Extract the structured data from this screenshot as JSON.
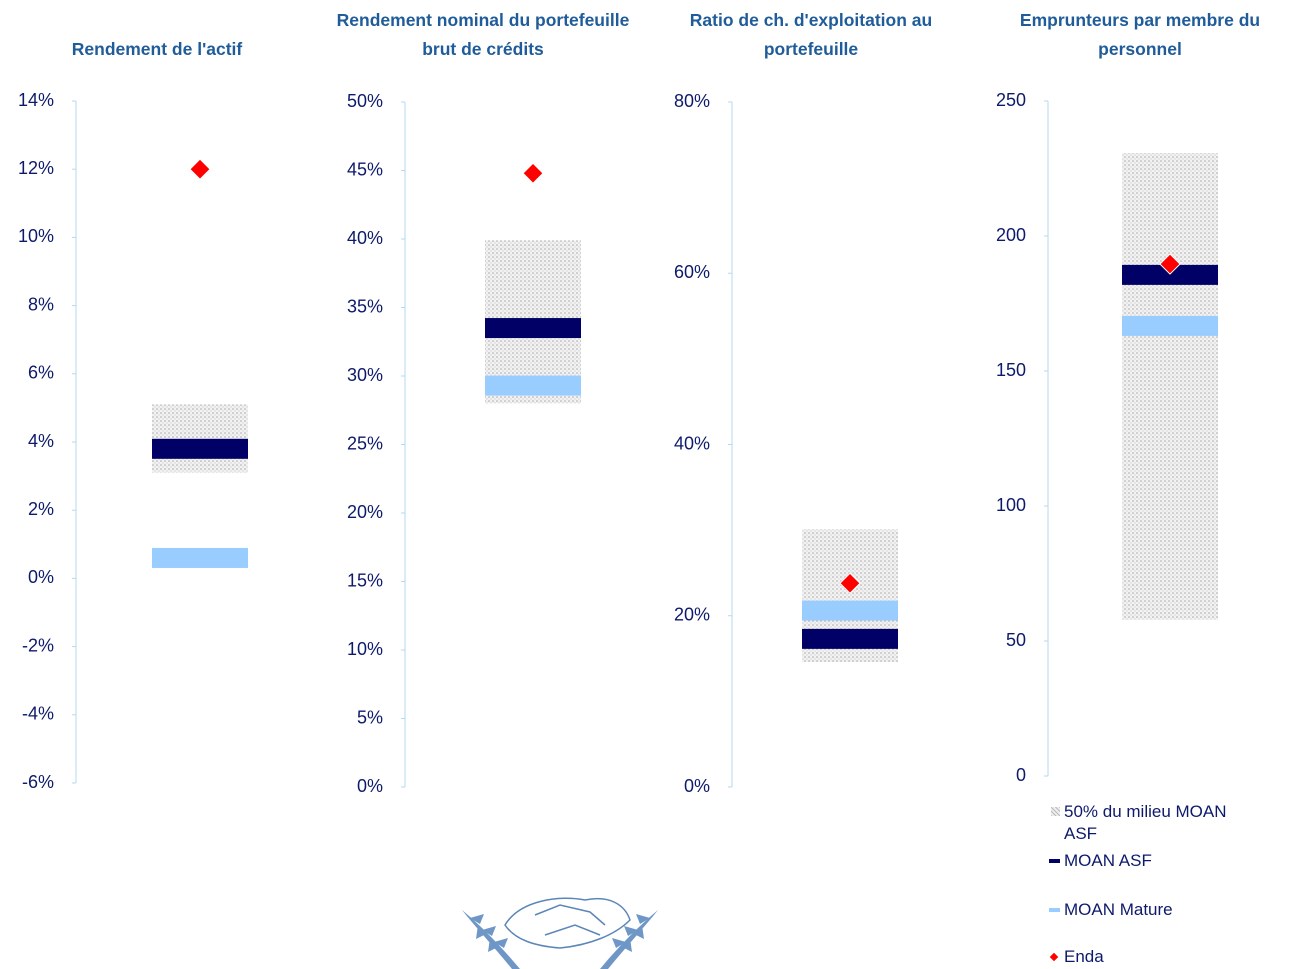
{
  "chart_data": [
    {
      "type": "range",
      "title": "Rendement de l'actif",
      "ylim": [
        -6,
        14
      ],
      "yticks": [
        {
          "value": -6,
          "label": "-6%"
        },
        {
          "value": -4,
          "label": "-4%"
        },
        {
          "value": -2,
          "label": "-2%"
        },
        {
          "value": 0,
          "label": "0%"
        },
        {
          "value": 2,
          "label": "2%"
        },
        {
          "value": 4,
          "label": "4%"
        },
        {
          "value": 6,
          "label": "6%"
        },
        {
          "value": 8,
          "label": "8%"
        },
        {
          "value": 10,
          "label": "10%"
        },
        {
          "value": 12,
          "label": "12%"
        },
        {
          "value": 14,
          "label": "14%"
        }
      ],
      "series": [
        {
          "name": "50% du milieu MOAN ASF",
          "color": "#bdbdbd",
          "values": [
            3.1,
            5.1
          ]
        },
        {
          "name": "MOAN ASF",
          "color": "#000066",
          "values": [
            3.8
          ]
        },
        {
          "name": "MOAN Mature",
          "color": "#99ccff",
          "values": [
            0.6
          ]
        },
        {
          "name": "Enda",
          "color": "#ff0000",
          "values": [
            12.0
          ]
        }
      ]
    },
    {
      "type": "range",
      "title": "Rendement nominal du portefeuille brut de crédits",
      "ylim": [
        0,
        50
      ],
      "yticks": [
        {
          "value": 0,
          "label": "0%"
        },
        {
          "value": 5,
          "label": "5%"
        },
        {
          "value": 10,
          "label": "10%"
        },
        {
          "value": 15,
          "label": "15%"
        },
        {
          "value": 20,
          "label": "20%"
        },
        {
          "value": 25,
          "label": "25%"
        },
        {
          "value": 30,
          "label": "30%"
        },
        {
          "value": 35,
          "label": "35%"
        },
        {
          "value": 40,
          "label": "40%"
        },
        {
          "value": 45,
          "label": "45%"
        },
        {
          "value": 50,
          "label": "50%"
        }
      ],
      "series": [
        {
          "name": "50% du milieu MOAN ASF",
          "color": "#bdbdbd",
          "values": [
            28.0,
            39.9
          ]
        },
        {
          "name": "MOAN ASF",
          "color": "#000066",
          "values": [
            33.5
          ]
        },
        {
          "name": "MOAN Mature",
          "color": "#99ccff",
          "values": [
            29.3
          ]
        },
        {
          "name": "Enda",
          "color": "#ff0000",
          "values": [
            44.8
          ]
        }
      ]
    },
    {
      "type": "range",
      "title": "Ratio de ch. d'exploitation au portefeuille",
      "ylim": [
        0,
        80
      ],
      "yticks": [
        {
          "value": 0,
          "label": "0%"
        },
        {
          "value": 20,
          "label": "20%"
        },
        {
          "value": 40,
          "label": "40%"
        },
        {
          "value": 60,
          "label": "60%"
        },
        {
          "value": 80,
          "label": "80%"
        }
      ],
      "series": [
        {
          "name": "50% du milieu MOAN ASF",
          "color": "#bdbdbd",
          "values": [
            14.6,
            30.1
          ]
        },
        {
          "name": "MOAN ASF",
          "color": "#000066",
          "values": [
            17.3
          ]
        },
        {
          "name": "MOAN Mature",
          "color": "#99ccff",
          "values": [
            20.6
          ]
        },
        {
          "name": "Enda",
          "color": "#ff0000",
          "values": [
            23.8
          ]
        }
      ]
    },
    {
      "type": "range",
      "title": "Emprunteurs par membre du personnel",
      "ylim": [
        0,
        250
      ],
      "yticks": [
        0,
        50,
        100,
        150,
        200,
        250
      ],
      "series": [
        {
          "name": "50% du milieu MOAN ASF",
          "color": "#bdbdbd",
          "values": [
            57.8,
            230.7
          ]
        },
        {
          "name": "MOAN ASF",
          "color": "#000066",
          "values": [
            185.6
          ]
        },
        {
          "name": "MOAN Mature",
          "color": "#99ccff",
          "values": [
            166.7
          ]
        },
        {
          "name": "Enda",
          "color": "#ff0000",
          "values": [
            189.6
          ]
        }
      ]
    }
  ]
}
